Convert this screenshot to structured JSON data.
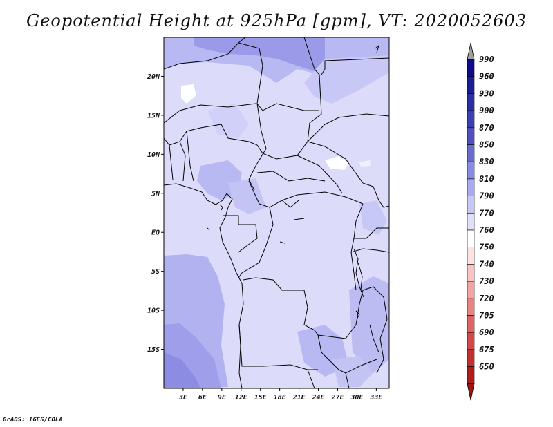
{
  "title": "Geopotential Height at 925hPa [gpm], VT: 2020052603",
  "credit": "GrADS: IGES/COLA",
  "map": {
    "lon_range": [
      0,
      35
    ],
    "lat_range": [
      -20,
      25
    ],
    "lat_ticks": [
      {
        "value": 20,
        "label": "20N"
      },
      {
        "value": 15,
        "label": "15N"
      },
      {
        "value": 10,
        "label": "10N"
      },
      {
        "value": 5,
        "label": "5N"
      },
      {
        "value": 0,
        "label": "EQ"
      },
      {
        "value": -5,
        "label": "5S"
      },
      {
        "value": -10,
        "label": "10S"
      },
      {
        "value": -15,
        "label": "15S"
      }
    ],
    "lon_ticks": [
      {
        "value": 3,
        "label": "3E"
      },
      {
        "value": 6,
        "label": "6E"
      },
      {
        "value": 9,
        "label": "9E"
      },
      {
        "value": 12,
        "label": "12E"
      },
      {
        "value": 15,
        "label": "15E"
      },
      {
        "value": 18,
        "label": "18E"
      },
      {
        "value": 21,
        "label": "21E"
      },
      {
        "value": 24,
        "label": "24E"
      },
      {
        "value": 27,
        "label": "27E"
      },
      {
        "value": 30,
        "label": "30E"
      },
      {
        "value": 33,
        "label": "33E"
      }
    ]
  },
  "colorbar": {
    "levels": [
      {
        "label": "990",
        "color": "#0c0c8c"
      },
      {
        "label": "960",
        "color": "#1c1c98"
      },
      {
        "label": "930",
        "color": "#2c2ca6"
      },
      {
        "label": "900",
        "color": "#3d3db4"
      },
      {
        "label": "870",
        "color": "#5050c2"
      },
      {
        "label": "850",
        "color": "#6a6ad0"
      },
      {
        "label": "830",
        "color": "#8a8ae0"
      },
      {
        "label": "810",
        "color": "#aaaaee"
      },
      {
        "label": "790",
        "color": "#c8c8f6"
      },
      {
        "label": "770",
        "color": "#e0e0fa"
      },
      {
        "label": "760",
        "color": "#ffffff"
      },
      {
        "label": "750",
        "color": "#fde2e2"
      },
      {
        "label": "740",
        "color": "#f8c4c4"
      },
      {
        "label": "730",
        "color": "#f2a4a4"
      },
      {
        "label": "720",
        "color": "#ea8484"
      },
      {
        "label": "705",
        "color": "#e06464"
      },
      {
        "label": "690",
        "color": "#d44848"
      },
      {
        "label": "675",
        "color": "#c43030"
      },
      {
        "label": "650",
        "color": "#b01c1c"
      }
    ],
    "top_arrow_color": "#a0a0a0",
    "bottom_arrow_color": "#a01414"
  }
}
